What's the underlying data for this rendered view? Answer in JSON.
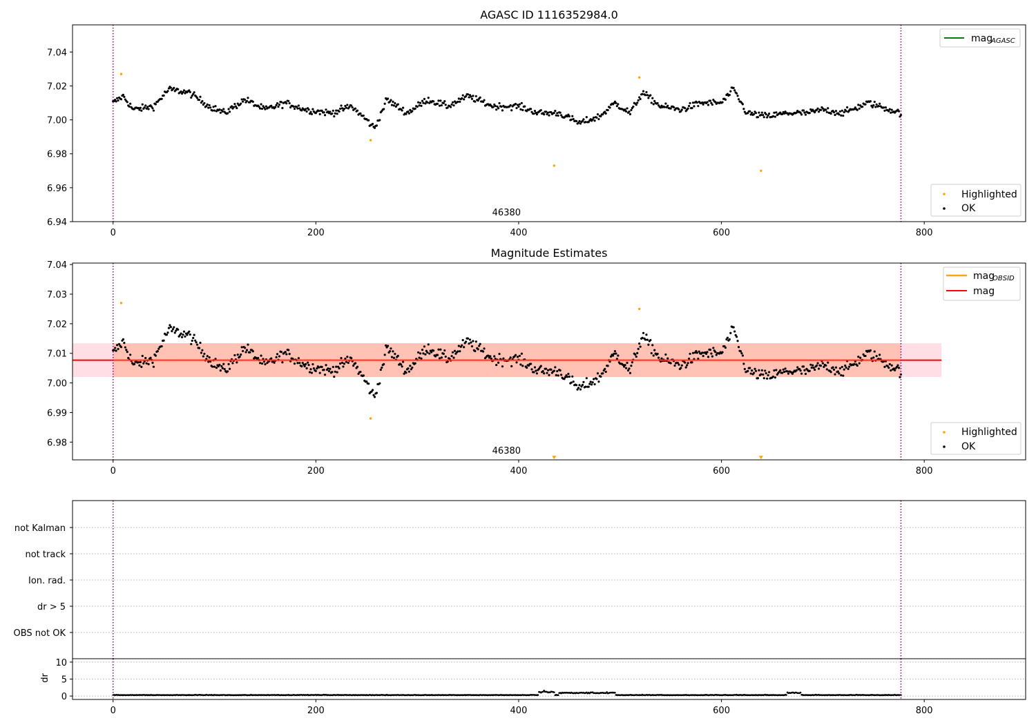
{
  "chart_data": [
    {
      "id": "top",
      "type": "scatter",
      "title": "AGASC ID 1116352984.0",
      "xlim": [
        -40,
        900
      ],
      "ylim": [
        6.94,
        7.056
      ],
      "xticks": [
        0,
        200,
        400,
        600,
        800
      ],
      "yticks": [
        6.94,
        6.96,
        6.98,
        7.0,
        7.02,
        7.04
      ],
      "ytick_labels": [
        "6.94",
        "6.96",
        "6.98",
        "7.00",
        "7.02",
        "7.04"
      ],
      "vlines": [
        0,
        777
      ],
      "obsid_label": "46380",
      "obsid_label_x": 388,
      "line_legend": [
        {
          "name": "mag",
          "sub": "AGASC",
          "color": "#008000"
        }
      ],
      "marker_legend": [
        {
          "name": "Highlighted",
          "color": "#ffa500"
        },
        {
          "name": "OK",
          "color": "#000000"
        }
      ],
      "highlighted": [
        [
          8,
          7.027
        ],
        [
          254,
          6.988
        ],
        [
          435,
          6.973
        ],
        [
          519,
          7.025
        ],
        [
          639,
          6.97
        ]
      ],
      "ok_series": {
        "n": 778,
        "mean": 7.0075,
        "noise": 0.0035,
        "knots": [
          [
            0,
            7.01
          ],
          [
            10,
            7.014
          ],
          [
            20,
            7.006
          ],
          [
            40,
            7.008
          ],
          [
            55,
            7.018
          ],
          [
            75,
            7.016
          ],
          [
            95,
            7.008
          ],
          [
            110,
            7.004
          ],
          [
            130,
            7.012
          ],
          [
            150,
            7.006
          ],
          [
            170,
            7.01
          ],
          [
            190,
            7.006
          ],
          [
            215,
            7.004
          ],
          [
            235,
            7.008
          ],
          [
            250,
            7.0
          ],
          [
            258,
            6.995
          ],
          [
            270,
            7.012
          ],
          [
            290,
            7.004
          ],
          [
            310,
            7.012
          ],
          [
            330,
            7.008
          ],
          [
            350,
            7.014
          ],
          [
            375,
            7.008
          ],
          [
            400,
            7.008
          ],
          [
            420,
            7.004
          ],
          [
            440,
            7.004
          ],
          [
            460,
            6.998
          ],
          [
            480,
            7.002
          ],
          [
            495,
            7.01
          ],
          [
            510,
            7.004
          ],
          [
            522,
            7.016
          ],
          [
            540,
            7.008
          ],
          [
            560,
            7.006
          ],
          [
            580,
            7.01
          ],
          [
            600,
            7.01
          ],
          [
            612,
            7.018
          ],
          [
            625,
            7.004
          ],
          [
            645,
            7.002
          ],
          [
            665,
            7.004
          ],
          [
            685,
            7.004
          ],
          [
            700,
            7.006
          ],
          [
            720,
            7.004
          ],
          [
            745,
            7.01
          ],
          [
            777,
            7.004
          ]
        ]
      }
    },
    {
      "id": "middle",
      "type": "scatter",
      "title": "Magnitude Estimates",
      "xlim": [
        -40,
        900
      ],
      "ylim": [
        6.974,
        7.0405
      ],
      "xticks": [
        0,
        200,
        400,
        600,
        800
      ],
      "yticks": [
        6.98,
        6.99,
        7.0,
        7.01,
        7.02,
        7.03,
        7.04
      ],
      "ytick_labels": [
        "6.98",
        "6.99",
        "7.00",
        "7.01",
        "7.02",
        "7.03",
        "7.04"
      ],
      "vlines": [
        0,
        777
      ],
      "obsid_label": "46380",
      "obsid_label_x": 388,
      "mag_line": {
        "value": 7.0077,
        "color": "#ff0000"
      },
      "band_pink": {
        "x": [
          -40,
          817
        ],
        "y": [
          7.002,
          7.0134
        ],
        "color": "#ffc0cb"
      },
      "band_orange": {
        "x": [
          0,
          777
        ],
        "y": [
          7.002,
          7.0134
        ],
        "color": "#ffa07a"
      },
      "line_legend": [
        {
          "name": "mag",
          "sub": "OBSID",
          "color": "#ffa500"
        },
        {
          "name": "mag",
          "sub": "",
          "color": "#ff0000"
        }
      ],
      "marker_legend": [
        {
          "name": "Highlighted",
          "color": "#ffa500"
        },
        {
          "name": "OK",
          "color": "#000000"
        }
      ],
      "highlighted": [
        [
          8,
          7.027
        ],
        [
          254,
          6.988
        ],
        [
          519,
          7.025
        ]
      ],
      "clipped_markers": [
        [
          435,
          6.9748
        ],
        [
          639,
          6.9748
        ]
      ]
    },
    {
      "id": "flags",
      "type": "scatter",
      "xlim": [
        -40,
        900
      ],
      "categories": [
        "not Kalman",
        "not track",
        "Ion. rad.",
        "dr > 5",
        "OBS not OK"
      ],
      "vlines": [
        0,
        777
      ]
    },
    {
      "id": "dr",
      "type": "scatter",
      "ylabel": "dr",
      "xlim": [
        -40,
        900
      ],
      "ylim": [
        -1,
        11
      ],
      "xticks": [
        0,
        200,
        400,
        600,
        800
      ],
      "yticks": [
        0,
        5,
        10
      ],
      "ytick_labels": [
        "0",
        "5",
        "10"
      ],
      "vlines": [
        0,
        777
      ],
      "series_desc": {
        "n": 778,
        "base": 0.25,
        "noise": 0.12,
        "bumps": [
          [
            420,
            435,
            1.0
          ],
          [
            440,
            495,
            0.75
          ],
          [
            665,
            678,
            0.8
          ]
        ]
      }
    }
  ],
  "colors": {
    "ok": "#000000",
    "highlighted": "#ffa500",
    "vline": "#800080",
    "grid": "#b0b0b0"
  }
}
